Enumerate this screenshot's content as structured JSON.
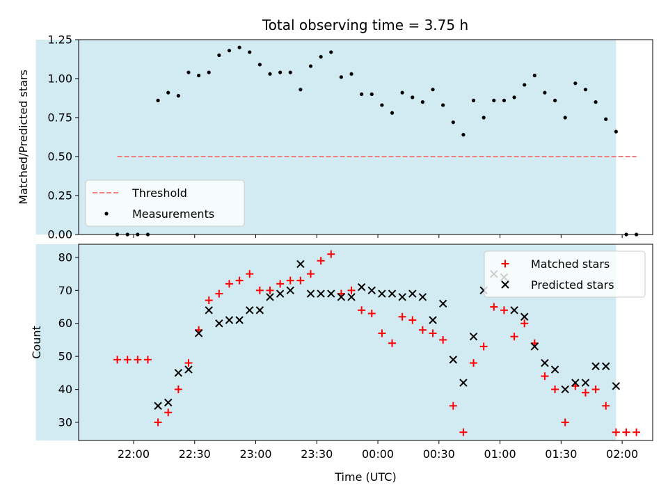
{
  "title": "Total observing time = 3.75 h",
  "colors": {
    "shade": "#add8e6",
    "threshold": "#f08080",
    "measurements": "#000000",
    "matched": "#ff0000",
    "predicted": "#000000"
  },
  "chart_data": [
    {
      "type": "scatter",
      "ylabel": "Matched/Predicted stars",
      "ylim": [
        0,
        1.25
      ],
      "yticks": [
        "0.00",
        "0.25",
        "0.50",
        "0.75",
        "1.00",
        "1.25"
      ],
      "shaded_interval": [
        "21:12",
        "01:57"
      ],
      "legend": {
        "position": "lower-left",
        "threshold_label": "Threshold",
        "measurements_label": "Measurements"
      },
      "threshold": {
        "y": 0.5,
        "x_range": [
          "21:52",
          "02:07"
        ]
      },
      "measurements": {
        "x": [
          "21:52",
          "21:57",
          "22:02",
          "22:07",
          "22:12",
          "22:17",
          "22:22",
          "22:27",
          "22:32",
          "22:37",
          "22:42",
          "22:47",
          "22:52",
          "22:57",
          "23:02",
          "23:07",
          "23:12",
          "23:17",
          "23:22",
          "23:27",
          "23:32",
          "23:37",
          "23:42",
          "23:47",
          "23:52",
          "23:57",
          "00:02",
          "00:07",
          "00:12",
          "00:17",
          "00:22",
          "00:27",
          "00:32",
          "00:37",
          "00:42",
          "00:47",
          "00:52",
          "00:57",
          "01:02",
          "01:07",
          "01:12",
          "01:17",
          "01:22",
          "01:27",
          "01:32",
          "01:37",
          "01:42",
          "01:47",
          "01:52",
          "01:57",
          "02:02",
          "02:07"
        ],
        "y": [
          0,
          0,
          0,
          0,
          0.86,
          0.91,
          0.89,
          1.04,
          1.02,
          1.04,
          1.15,
          1.18,
          1.2,
          1.17,
          1.09,
          1.03,
          1.04,
          1.04,
          0.93,
          1.08,
          1.14,
          1.17,
          1.01,
          1.03,
          0.9,
          0.9,
          0.83,
          0.78,
          0.91,
          0.88,
          0.85,
          0.93,
          0.83,
          0.72,
          0.64,
          0.86,
          0.75,
          0.86,
          0.86,
          0.88,
          0.96,
          1.02,
          0.91,
          0.86,
          0.75,
          0.97,
          0.93,
          0.85,
          0.74,
          0.66,
          0,
          0
        ]
      }
    },
    {
      "type": "scatter",
      "xlabel": "Time (UTC)",
      "ylabel": "Count",
      "ylim": [
        24.5,
        84
      ],
      "yticks": [
        "30",
        "40",
        "50",
        "60",
        "70",
        "80"
      ],
      "xticks": [
        "22:00",
        "22:30",
        "23:00",
        "23:30",
        "00:00",
        "00:30",
        "01:00",
        "01:30",
        "02:00"
      ],
      "shaded_interval": [
        "21:12",
        "01:57"
      ],
      "legend": {
        "position": "upper-right"
      },
      "series": [
        {
          "name": "Matched stars",
          "marker": "plus",
          "x": [
            "21:52",
            "21:57",
            "22:02",
            "22:07",
            "22:12",
            "22:17",
            "22:22",
            "22:27",
            "22:32",
            "22:37",
            "22:42",
            "22:47",
            "22:52",
            "22:57",
            "23:02",
            "23:07",
            "23:12",
            "23:17",
            "23:22",
            "23:27",
            "23:32",
            "23:37",
            "23:42",
            "23:47",
            "23:52",
            "23:57",
            "00:02",
            "00:07",
            "00:12",
            "00:17",
            "00:22",
            "00:27",
            "00:32",
            "00:37",
            "00:42",
            "00:47",
            "00:52",
            "00:57",
            "01:02",
            "01:07",
            "01:12",
            "01:17",
            "01:22",
            "01:27",
            "01:32",
            "01:37",
            "01:42",
            "01:47",
            "01:52",
            "01:57",
            "02:02",
            "02:07"
          ],
          "y": [
            49,
            49,
            49,
            49,
            30,
            33,
            40,
            48,
            58,
            67,
            69,
            72,
            73,
            75,
            70,
            70,
            72,
            73,
            73,
            75,
            79,
            81,
            69,
            70,
            64,
            63,
            57,
            54,
            62,
            61,
            58,
            57,
            55,
            35,
            27,
            48,
            53,
            65,
            64,
            56,
            60,
            54,
            44,
            40,
            30,
            41,
            39,
            40,
            35,
            27,
            27,
            27
          ]
        },
        {
          "name": "Predicted stars",
          "marker": "x",
          "x": [
            "22:12",
            "22:17",
            "22:22",
            "22:27",
            "22:32",
            "22:37",
            "22:42",
            "22:47",
            "22:52",
            "22:57",
            "23:02",
            "23:07",
            "23:12",
            "23:17",
            "23:22",
            "23:27",
            "23:32",
            "23:37",
            "23:42",
            "23:47",
            "23:52",
            "23:57",
            "00:02",
            "00:07",
            "00:12",
            "00:17",
            "00:22",
            "00:27",
            "00:32",
            "00:37",
            "00:42",
            "00:47",
            "00:52",
            "00:57",
            "01:02",
            "01:07",
            "01:12",
            "01:17",
            "01:22",
            "01:27",
            "01:32",
            "01:37",
            "01:42",
            "01:47",
            "01:52",
            "01:57"
          ],
          "y": [
            35,
            36,
            45,
            46,
            57,
            64,
            60,
            61,
            61,
            64,
            64,
            68,
            69,
            70,
            78,
            69,
            69,
            69,
            68,
            68,
            71,
            70,
            69,
            69,
            68,
            69,
            68,
            61,
            66,
            49,
            42,
            56,
            70,
            75,
            74,
            64,
            62,
            53,
            48,
            46,
            40,
            42,
            42,
            47,
            47,
            41
          ]
        }
      ]
    }
  ]
}
